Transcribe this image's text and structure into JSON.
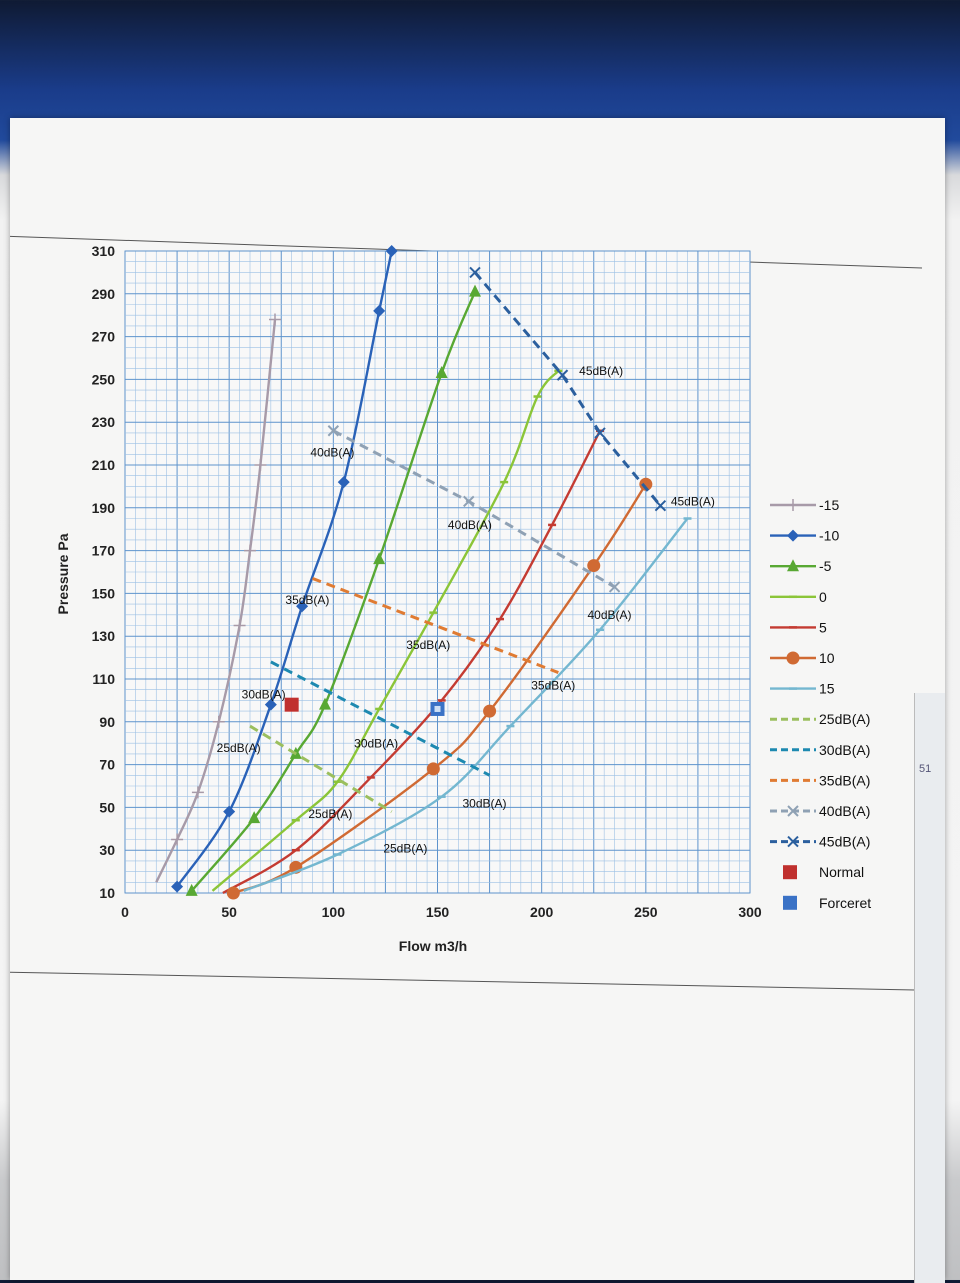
{
  "chart_data": {
    "type": "line",
    "xlabel": "Flow m3/h",
    "ylabel": "Pressure Pa",
    "xlim": [
      0,
      300
    ],
    "ylim": [
      10,
      310
    ],
    "x_ticks": [
      "0",
      "50",
      "100",
      "150",
      "200",
      "250",
      "300"
    ],
    "y_ticks": [
      "10",
      "30",
      "50",
      "70",
      "90",
      "110",
      "130",
      "150",
      "170",
      "190",
      "210",
      "230",
      "250",
      "270",
      "290",
      "310"
    ],
    "grid": true,
    "legend_position": "right",
    "series": [
      {
        "name": "-15",
        "style": "solid",
        "color": "#a79aa8",
        "marker": "plus",
        "points": [
          [
            15,
            15
          ],
          [
            25,
            35
          ],
          [
            35,
            57
          ],
          [
            45,
            90
          ],
          [
            55,
            135
          ],
          [
            60,
            170
          ],
          [
            65,
            210
          ],
          [
            72,
            278
          ]
        ]
      },
      {
        "name": "-10",
        "style": "solid",
        "color": "#2a62b8",
        "marker": "diamond",
        "points": [
          [
            25,
            13
          ],
          [
            50,
            48
          ],
          [
            70,
            98
          ],
          [
            85,
            144
          ],
          [
            105,
            202
          ],
          [
            122,
            282
          ],
          [
            128,
            310
          ]
        ]
      },
      {
        "name": "-5",
        "style": "solid",
        "color": "#58a833",
        "marker": "triangle",
        "points": [
          [
            32,
            11
          ],
          [
            62,
            45
          ],
          [
            82,
            75
          ],
          [
            96,
            98
          ],
          [
            122,
            166
          ],
          [
            152,
            253
          ],
          [
            168,
            291
          ]
        ]
      },
      {
        "name": "0",
        "style": "solid",
        "color": "#8bc538",
        "marker": "dash",
        "points": [
          [
            42,
            11
          ],
          [
            82,
            44
          ],
          [
            102,
            62
          ],
          [
            122,
            96
          ],
          [
            148,
            141
          ],
          [
            182,
            202
          ],
          [
            198,
            242
          ],
          [
            208,
            254
          ]
        ]
      },
      {
        "name": "5",
        "style": "solid",
        "color": "#c43b32",
        "marker": "dash",
        "points": [
          [
            47,
            10
          ],
          [
            82,
            30
          ],
          [
            118,
            64
          ],
          [
            152,
            100
          ],
          [
            180,
            138
          ],
          [
            205,
            182
          ],
          [
            228,
            226
          ]
        ]
      },
      {
        "name": "10",
        "style": "solid",
        "color": "#d06a33",
        "marker": "circle",
        "points": [
          [
            52,
            10
          ],
          [
            82,
            22
          ],
          [
            148,
            68
          ],
          [
            175,
            95
          ],
          [
            225,
            163
          ],
          [
            250,
            201
          ]
        ]
      },
      {
        "name": "15",
        "style": "solid",
        "color": "#74b7d0",
        "marker": "dash",
        "points": [
          [
            57,
            11
          ],
          [
            102,
            28
          ],
          [
            152,
            55
          ],
          [
            185,
            88
          ],
          [
            228,
            133
          ],
          [
            270,
            185
          ]
        ]
      },
      {
        "name": "25dB(A)",
        "style": "dashed",
        "color": "#9bbf5e",
        "marker": "none",
        "points": [
          [
            60,
            88
          ],
          [
            128,
            48
          ]
        ]
      },
      {
        "name": "30dB(A)",
        "style": "dashed",
        "color": "#1d89b0",
        "marker": "none",
        "points": [
          [
            70,
            118
          ],
          [
            175,
            65
          ]
        ]
      },
      {
        "name": "35dB(A)",
        "style": "dashed",
        "color": "#e07b32",
        "marker": "none",
        "points": [
          [
            90,
            157
          ],
          [
            208,
            113
          ]
        ]
      },
      {
        "name": "40dB(A)",
        "style": "dashed",
        "color": "#8fa1b4",
        "marker": "x",
        "points": [
          [
            100,
            226
          ],
          [
            165,
            193
          ],
          [
            235,
            153
          ]
        ]
      },
      {
        "name": "45dB(A)",
        "style": "dashed",
        "color": "#2b5f9e",
        "marker": "x",
        "points": [
          [
            168,
            300
          ],
          [
            210,
            252
          ],
          [
            228,
            225
          ],
          [
            257,
            191
          ]
        ]
      }
    ],
    "points": [
      {
        "name": "Normal",
        "color": "#c0302e",
        "marker": "square",
        "x": 80,
        "y": 98
      },
      {
        "name": "Forceret",
        "color": "#3a72c6",
        "marker": "square",
        "x": 150,
        "y": 96
      }
    ],
    "annotations": [
      {
        "text": "45dB(A)",
        "x": 218,
        "y": 252
      },
      {
        "text": "45dB(A)",
        "x": 262,
        "y": 191
      },
      {
        "text": "40dB(A)",
        "x": 89,
        "y": 214
      },
      {
        "text": "40dB(A)",
        "x": 155,
        "y": 180
      },
      {
        "text": "40dB(A)",
        "x": 222,
        "y": 138
      },
      {
        "text": "35dB(A)",
        "x": 77,
        "y": 145
      },
      {
        "text": "35dB(A)",
        "x": 135,
        "y": 124
      },
      {
        "text": "35dB(A)",
        "x": 195,
        "y": 105
      },
      {
        "text": "30dB(A)",
        "x": 56,
        "y": 101
      },
      {
        "text": "30dB(A)",
        "x": 110,
        "y": 78
      },
      {
        "text": "30dB(A)",
        "x": 162,
        "y": 50
      },
      {
        "text": "25dB(A)",
        "x": 44,
        "y": 76
      },
      {
        "text": "25dB(A)",
        "x": 88,
        "y": 45
      },
      {
        "text": "25dB(A)",
        "x": 124,
        "y": 29
      }
    ]
  },
  "edge_strip": {
    "text": "51"
  }
}
